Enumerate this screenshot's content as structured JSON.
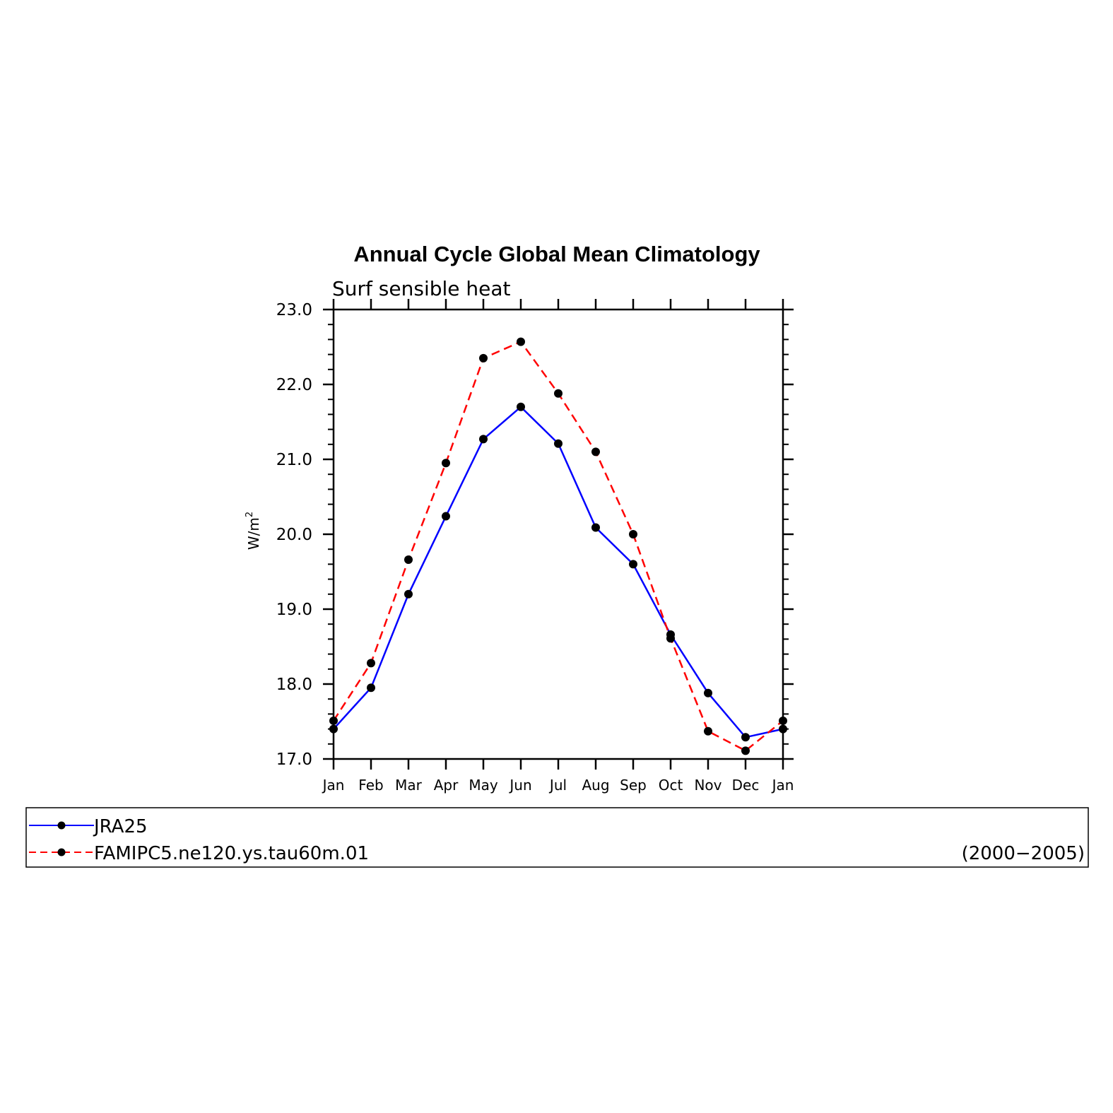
{
  "chart_data": {
    "type": "line",
    "title": "Annual Cycle Global Mean Climatology",
    "subtitle": "Surf sensible heat",
    "ylabel_base": "W/m",
    "ylabel_sup": "2",
    "xlabel": "",
    "categories": [
      "Jan",
      "Feb",
      "Mar",
      "Apr",
      "May",
      "Jun",
      "Jul",
      "Aug",
      "Sep",
      "Oct",
      "Nov",
      "Dec",
      "Jan"
    ],
    "ylim": [
      17.0,
      23.0
    ],
    "ytick_labels": [
      "17.0",
      "18.0",
      "19.0",
      "20.0",
      "21.0",
      "22.0",
      "23.0"
    ],
    "ytick_values": [
      17.0,
      18.0,
      19.0,
      20.0,
      21.0,
      22.0,
      23.0
    ],
    "grid": false,
    "series": [
      {
        "name": "JRA25",
        "color": "#0000ff",
        "dash": "solid",
        "marker": "circle",
        "values": [
          17.4,
          17.95,
          19.2,
          20.24,
          21.27,
          21.7,
          21.21,
          20.09,
          19.6,
          18.66,
          17.88,
          17.29,
          17.4
        ]
      },
      {
        "name": "FAMIPC5.ne120.ys.tau60m.01",
        "color": "#ff0000",
        "dash": "dashed",
        "marker": "circle",
        "values": [
          17.51,
          18.28,
          19.66,
          20.95,
          22.35,
          22.57,
          21.88,
          21.1,
          20.0,
          18.61,
          17.37,
          17.11,
          17.51
        ]
      }
    ],
    "legend": {
      "placement": "bottom",
      "period": "(2000−2005)"
    }
  }
}
